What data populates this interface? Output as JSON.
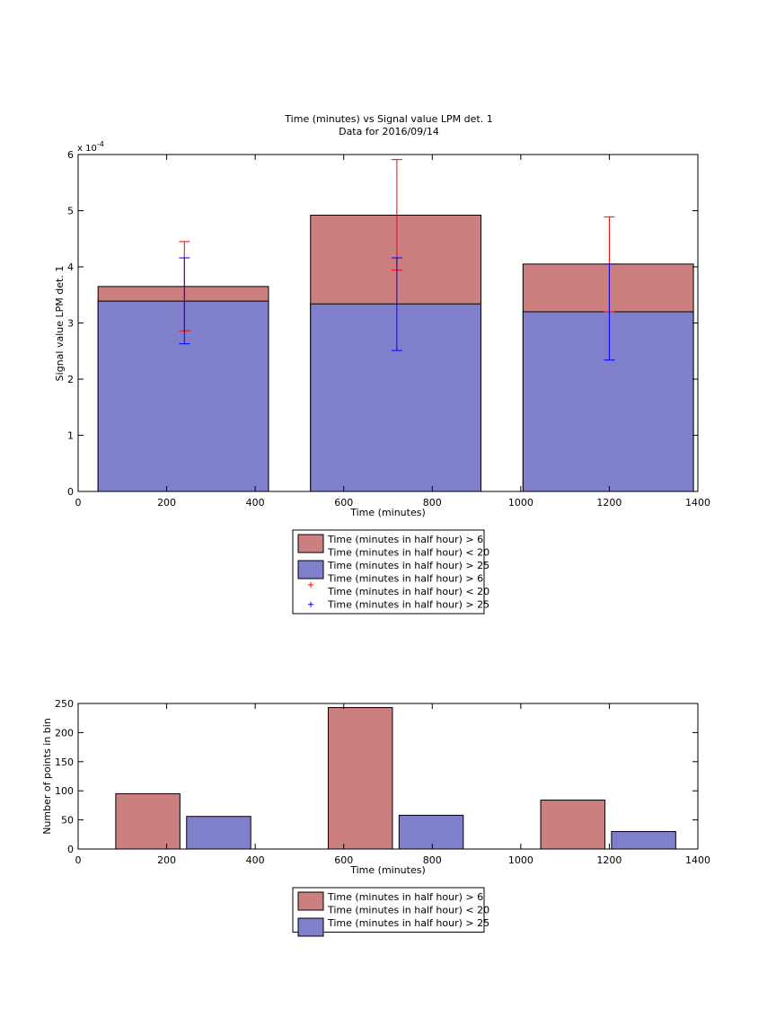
{
  "colors": {
    "red_fill": "#cc7f7f",
    "blue_fill": "#7f7fcc",
    "red_err": "#ff0000",
    "blue_err": "#0000ff",
    "axis": "#000000"
  },
  "chart_data": [
    {
      "type": "bar",
      "title": "Time (minutes) vs Signal value LPM det. 1",
      "subtitle": "Data for 2016/09/14",
      "xlabel": "Time (minutes)",
      "ylabel": "Signal value LPM det. 1",
      "exponent_label": "x 10",
      "exponent_power": "-4",
      "xlim": [
        0,
        1400
      ],
      "ylim": [
        0,
        6
      ],
      "xticks": [
        "0",
        "200",
        "400",
        "600",
        "800",
        "1000",
        "1200",
        "1400"
      ],
      "yticks": [
        "0",
        "1",
        "2",
        "3",
        "4",
        "5",
        "6"
      ],
      "grid": false,
      "legend_placement": "below",
      "legend": [
        {
          "kind": "patch",
          "color": "red",
          "lines": [
            "Time (minutes in half hour) > 6",
            "Time (minutes in half hour) < 20"
          ]
        },
        {
          "kind": "patch",
          "color": "blue",
          "lines": [
            "Time (minutes in half hour) > 25"
          ]
        },
        {
          "kind": "marker",
          "color": "red",
          "lines": [
            "Time (minutes in half hour) > 6",
            "Time (minutes in half hour) < 20"
          ]
        },
        {
          "kind": "marker",
          "color": "blue",
          "lines": [
            "Time (minutes in half hour) > 25"
          ]
        }
      ],
      "bars": [
        {
          "x_start": 45,
          "x_end": 430,
          "center": 240,
          "red": 3.65,
          "blue": 3.39,
          "red_err": [
            2.86,
            4.45
          ],
          "blue_err": [
            2.63,
            4.16
          ]
        },
        {
          "x_start": 525,
          "x_end": 910,
          "center": 720,
          "red": 4.92,
          "blue": 3.34,
          "red_err": [
            3.94,
            5.91
          ],
          "blue_err": [
            2.51,
            4.16
          ]
        },
        {
          "x_start": 1005,
          "x_end": 1390,
          "center": 1200,
          "red": 4.05,
          "blue": 3.2,
          "red_err": [
            3.2,
            4.89
          ],
          "blue_err": [
            2.34,
            4.05
          ]
        }
      ]
    },
    {
      "type": "bar",
      "xlabel": "Time (minutes)",
      "ylabel": "Number of points in bin",
      "xlim": [
        0,
        1400
      ],
      "ylim": [
        0,
        250
      ],
      "xticks": [
        "0",
        "200",
        "400",
        "600",
        "800",
        "1000",
        "1200",
        "1400"
      ],
      "yticks": [
        "0",
        "50",
        "100",
        "150",
        "200",
        "250"
      ],
      "grid": false,
      "legend_placement": "below",
      "legend": [
        {
          "kind": "patch",
          "color": "red",
          "lines": [
            "Time (minutes in half hour) > 6",
            "Time (minutes in half hour) < 20"
          ]
        },
        {
          "kind": "patch",
          "color": "blue",
          "lines": [
            "Time (minutes in half hour) > 25"
          ]
        }
      ],
      "bars": [
        {
          "series": "red",
          "x_start": 85,
          "x_end": 230,
          "value": 95
        },
        {
          "series": "blue",
          "x_start": 245,
          "x_end": 390,
          "value": 56
        },
        {
          "series": "red",
          "x_start": 565,
          "x_end": 710,
          "value": 243
        },
        {
          "series": "blue",
          "x_start": 725,
          "x_end": 870,
          "value": 58
        },
        {
          "series": "red",
          "x_start": 1045,
          "x_end": 1190,
          "value": 84
        },
        {
          "series": "blue",
          "x_start": 1205,
          "x_end": 1350,
          "value": 30
        }
      ]
    }
  ]
}
